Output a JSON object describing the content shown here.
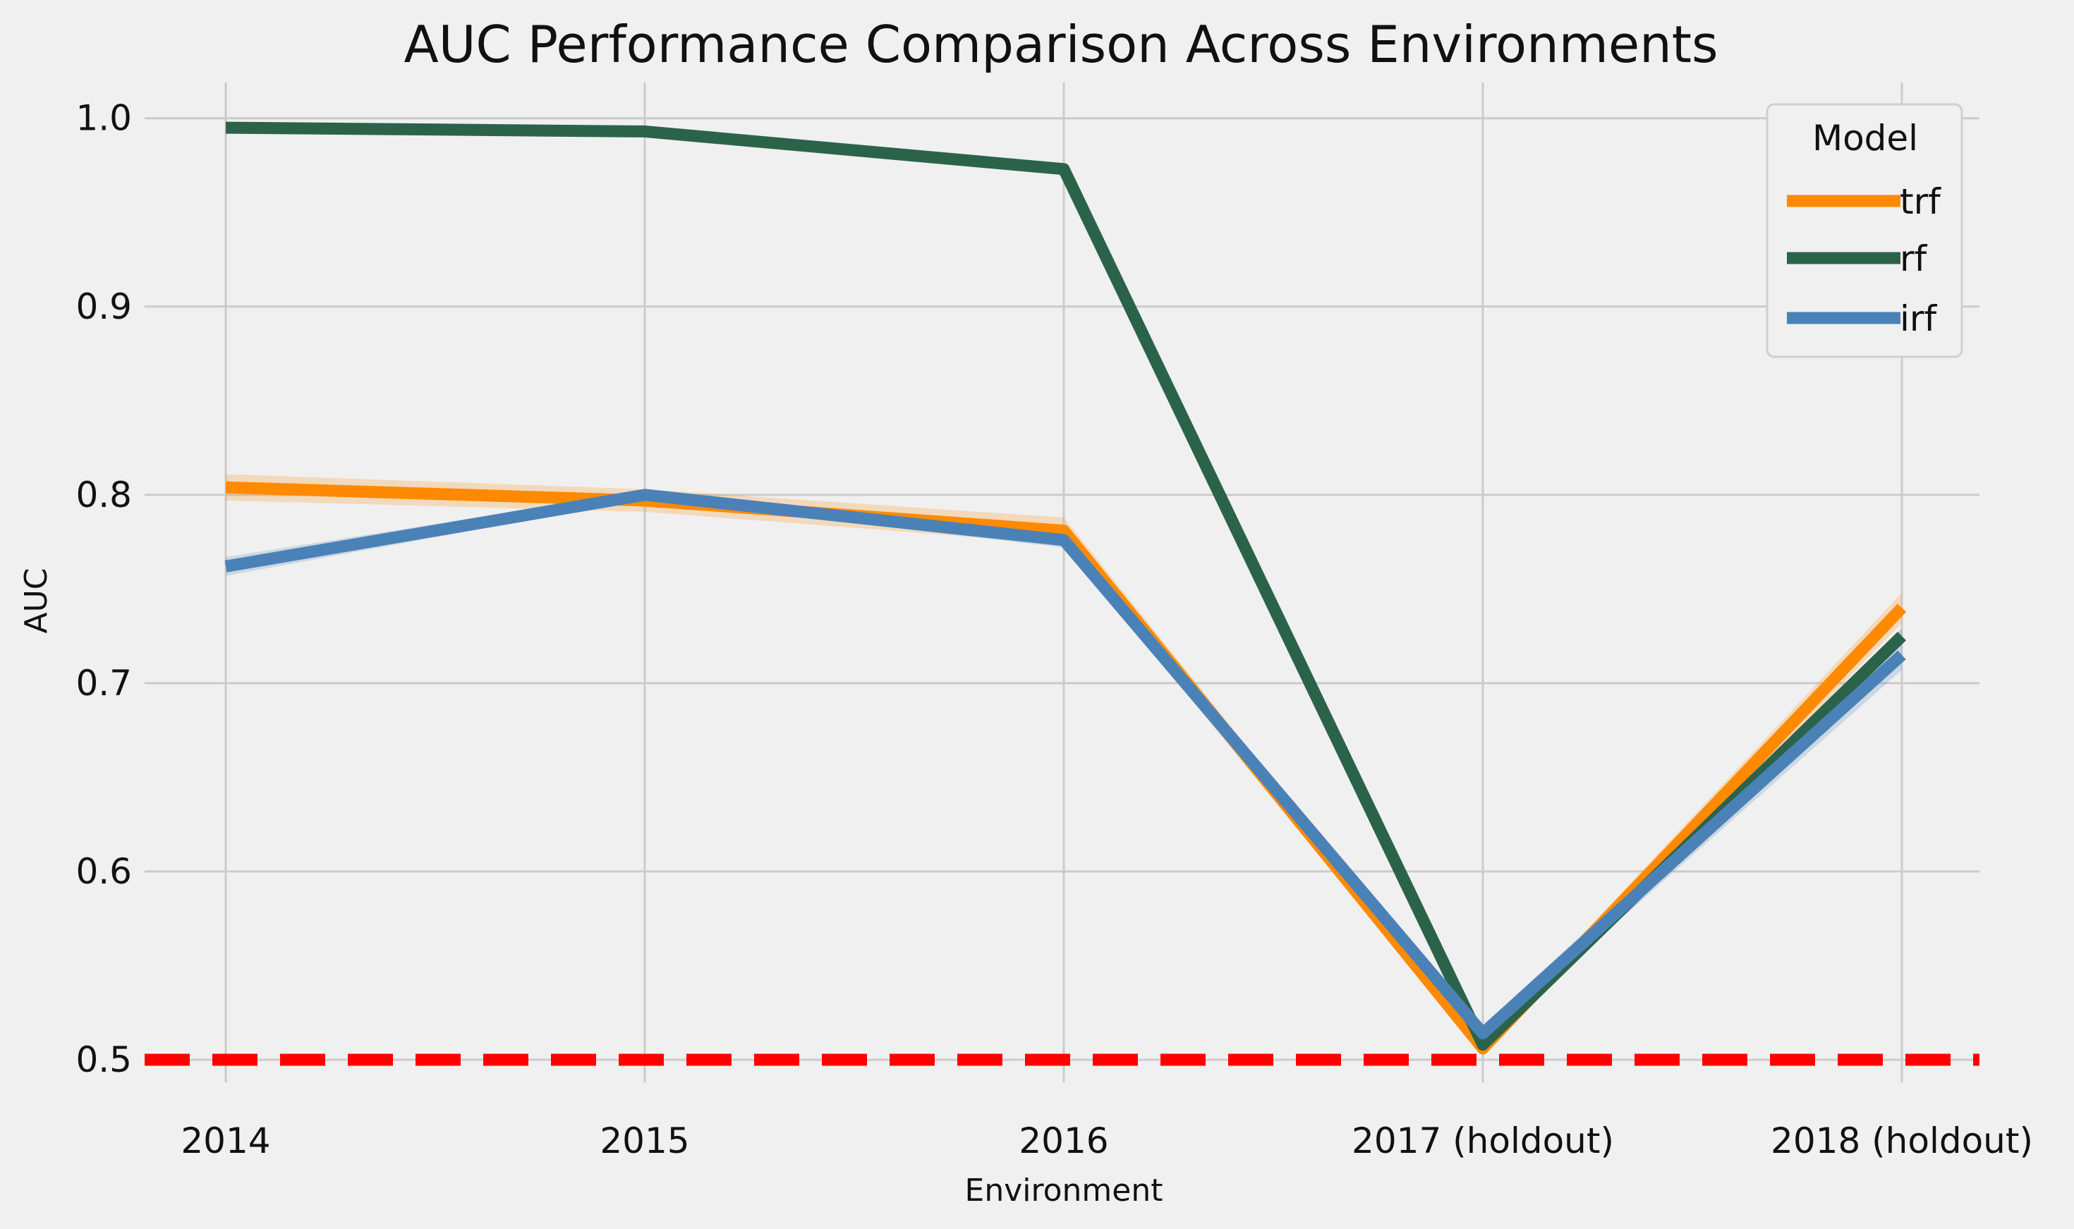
{
  "chart_data": {
    "type": "line",
    "title": "AUC Performance Comparison Across Environments",
    "xlabel": "Environment",
    "ylabel": "AUC",
    "categories": [
      "2014",
      "2015",
      "2016",
      "2017 (holdout)",
      "2018 (holdout)"
    ],
    "ylim": [
      0.488,
      1.019
    ],
    "yticks": [
      0.5,
      0.6,
      0.7,
      0.8,
      0.9,
      1.0
    ],
    "ytick_labels": [
      "0.5",
      "0.6",
      "0.7",
      "0.8",
      "0.9",
      "1.0"
    ],
    "grid": true,
    "legend": {
      "title": "Model",
      "position": "top-right"
    },
    "reference_line": {
      "y": 0.5,
      "color": "#ff0000",
      "style": "dashed"
    },
    "series": [
      {
        "name": "trf",
        "color": "#ff8a00",
        "values": [
          0.804,
          0.797,
          0.781,
          0.506,
          0.74
        ],
        "band": [
          0.007,
          0.006,
          0.007,
          0.004,
          0.008
        ]
      },
      {
        "name": "rf",
        "color": "#2b634a",
        "values": [
          0.995,
          0.993,
          0.973,
          0.508,
          0.725
        ],
        "band": [
          0.001,
          0.001,
          0.001,
          0.003,
          0.004
        ]
      },
      {
        "name": "irf",
        "color": "#4a82b8",
        "values": [
          0.762,
          0.8,
          0.776,
          0.514,
          0.715
        ],
        "band": [
          0.005,
          0.002,
          0.004,
          0.004,
          0.008
        ]
      }
    ]
  }
}
